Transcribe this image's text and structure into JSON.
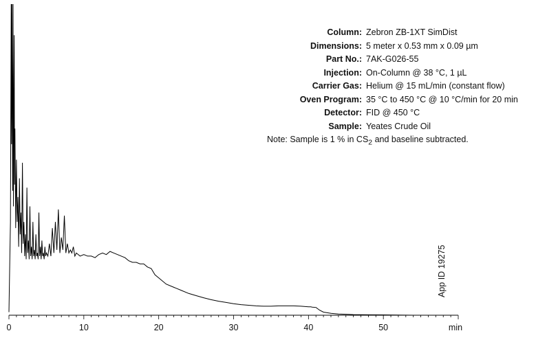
{
  "method": {
    "rows": [
      {
        "label": "Column:",
        "value": "Zebron ZB-1XT SimDist"
      },
      {
        "label": "Dimensions:",
        "value": "5 meter x 0.53 mm x 0.09 µm"
      },
      {
        "label": "Part No.:",
        "value": "7AK-G026-55"
      },
      {
        "label": "Injection:",
        "value": "On-Column @ 38 °C, 1 µL"
      },
      {
        "label": "Carrier Gas:",
        "value": "Helium @ 15 mL/min (constant flow)"
      },
      {
        "label": "Oven Program:",
        "value": "35 °C to 450 °C @ 10 °C/min for 20 min"
      },
      {
        "label": "Detector:",
        "value": "FID @ 450 °C"
      },
      {
        "label": "Sample:",
        "value": "Yeates Crude Oil"
      }
    ],
    "note_prefix": "Note: Sample is 1 % in CS",
    "note_sub": "2",
    "note_suffix": " and baseline subtracted."
  },
  "app_id": "App ID 19275",
  "chart_data": {
    "type": "line",
    "xlim": [
      0,
      60
    ],
    "ylim": [
      0,
      100
    ],
    "x_ticks": [
      0,
      10,
      20,
      30,
      40,
      50
    ],
    "x_tick_labels": [
      "0",
      "10",
      "20",
      "30",
      "40",
      "50"
    ],
    "x_unit_label": "min",
    "grid": false,
    "series": [
      {
        "x": [
          0.0,
          0.2,
          0.3,
          0.35,
          0.4,
          0.5,
          0.55,
          0.6,
          0.7,
          0.75,
          0.8,
          0.9,
          1.0,
          1.1,
          1.2,
          1.3,
          1.4,
          1.5,
          1.6,
          1.7,
          1.8,
          1.9,
          2.0,
          2.1,
          2.2,
          2.3,
          2.4,
          2.5,
          2.6,
          2.7,
          2.8,
          2.9,
          3.0,
          3.1,
          3.2,
          3.3,
          3.4,
          3.5,
          3.6,
          3.7,
          3.8,
          3.9,
          4.0,
          4.1,
          4.2,
          4.3,
          4.4,
          4.5,
          4.6,
          4.7,
          4.8,
          4.9,
          5.0,
          5.2,
          5.4,
          5.6,
          5.8,
          6.0,
          6.2,
          6.4,
          6.6,
          6.8,
          7.0,
          7.2,
          7.4,
          7.6,
          7.8,
          8.0,
          8.2,
          8.4,
          8.6,
          8.8,
          9.0,
          9.5,
          10.0,
          10.5,
          11.0,
          11.5,
          12.0,
          12.5,
          13.0,
          13.5,
          14.0,
          14.5,
          15.0,
          15.5,
          16.0,
          16.5,
          17.0,
          17.5,
          18.0,
          18.5,
          19.0,
          19.5,
          20.0,
          21.0,
          22.0,
          23.0,
          24.0,
          25.0,
          26.0,
          27.0,
          28.0,
          29.0,
          30.0,
          31.0,
          32.0,
          33.0,
          34.0,
          35.0,
          36.0,
          37.0,
          38.0,
          39.0,
          40.0,
          40.3,
          40.5,
          41.0,
          41.5,
          42.0,
          43.0,
          44.0,
          45.0,
          46.0,
          48.0,
          50.0,
          52.0,
          54.0,
          56.0,
          58.0,
          60.0
        ],
        "y": [
          1,
          30,
          100,
          55,
          100,
          40,
          100,
          35,
          90,
          42,
          60,
          28,
          50,
          30,
          38,
          22,
          44,
          26,
          33,
          20,
          49,
          23,
          30,
          19,
          26,
          18,
          41,
          20,
          24,
          18,
          35,
          19,
          22,
          18,
          30,
          19,
          21,
          18,
          26,
          19,
          20,
          18,
          33,
          19,
          22,
          18,
          24,
          19,
          20,
          18,
          22,
          19,
          20,
          19,
          23,
          19,
          28,
          20,
          30,
          21,
          34,
          20,
          25,
          21,
          32,
          20,
          23,
          20,
          21,
          20,
          22,
          19,
          20,
          19,
          19.5,
          19,
          19,
          18.5,
          19.5,
          20,
          19.5,
          20.5,
          20,
          19.5,
          19,
          18.5,
          17.5,
          17,
          17,
          16.5,
          16.5,
          15.5,
          15,
          13,
          12,
          10,
          9,
          8,
          7,
          6.3,
          5.6,
          5,
          4.5,
          4.1,
          3.7,
          3.4,
          3.2,
          3.0,
          2.9,
          2.9,
          3.0,
          3.0,
          3.0,
          2.9,
          2.7,
          2.7,
          2.6,
          2.5,
          1.6,
          1.0,
          0.6,
          0.4,
          0.3,
          0.2,
          0.15,
          0.1,
          0.05,
          0.0,
          0.0,
          0.0,
          0.0
        ]
      }
    ]
  }
}
